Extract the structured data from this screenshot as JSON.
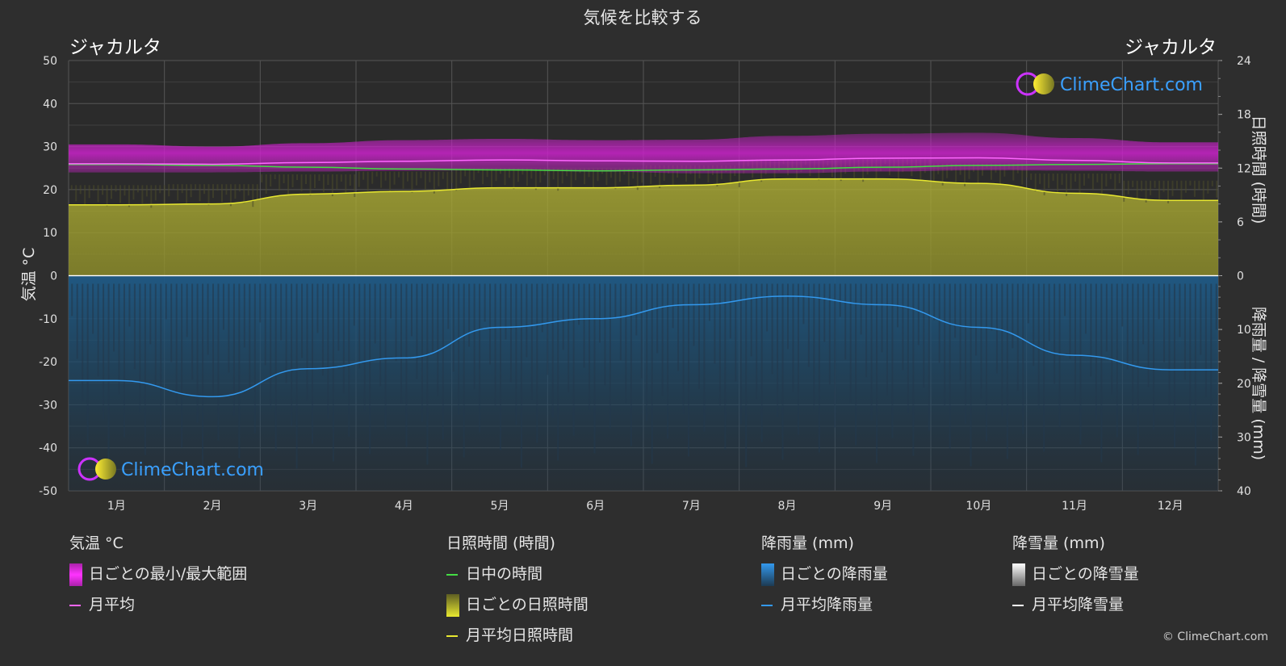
{
  "chart_data": {
    "type": "area",
    "title": "気候を比較する",
    "location_left": "ジャカルタ",
    "location_right": "ジャカルタ",
    "brand": "ClimeChart.com",
    "copyright": "© ClimeChart.com",
    "categories": [
      "1月",
      "2月",
      "3月",
      "4月",
      "5月",
      "6月",
      "7月",
      "8月",
      "9月",
      "10月",
      "11月",
      "12月"
    ],
    "y_left": {
      "label": "気温 °C",
      "ylim": [
        -50,
        50
      ],
      "ticks": [
        50,
        40,
        30,
        20,
        10,
        0,
        -10,
        -20,
        -30,
        -40,
        -50
      ]
    },
    "y_right_top": {
      "label": "日照時間 (時間)",
      "ylim": [
        0,
        24
      ],
      "ticks": [
        24,
        18,
        12,
        6,
        0
      ]
    },
    "y_right_bottom": {
      "label": "降雨量 / 降雪量 (mm)",
      "ylim": [
        0,
        40
      ],
      "ticks": [
        0,
        10,
        20,
        30,
        40
      ]
    },
    "grid": true,
    "series": [
      {
        "name": "月平均",
        "unit": "°C",
        "axis": "temperature",
        "color": "#ff66ff",
        "values": [
          26.0,
          25.9,
          26.3,
          26.6,
          26.9,
          26.7,
          26.6,
          26.9,
          27.3,
          27.4,
          26.8,
          26.2
        ]
      },
      {
        "name": "日ごとの最小/最大範囲",
        "unit": "°C",
        "axis": "temperature",
        "color": "#cc22cc",
        "low": [
          24.0,
          24.0,
          24.2,
          24.4,
          24.5,
          24.2,
          23.8,
          23.8,
          24.2,
          24.5,
          24.4,
          24.2
        ],
        "high": [
          30.5,
          30.0,
          30.8,
          31.5,
          31.8,
          31.5,
          31.6,
          32.5,
          33.0,
          33.2,
          32.0,
          31.0
        ]
      },
      {
        "name": "日中の時間",
        "unit": "時間",
        "axis": "sunshine",
        "color": "#44dd44",
        "values": [
          12.4,
          12.3,
          12.1,
          11.9,
          11.8,
          11.7,
          11.8,
          11.9,
          12.1,
          12.3,
          12.4,
          12.5
        ]
      },
      {
        "name": "月平均日照時間",
        "unit": "時間",
        "axis": "sunshine",
        "color": "#e8e830",
        "values": [
          7.9,
          8.0,
          9.1,
          9.4,
          9.8,
          9.8,
          10.1,
          10.8,
          10.8,
          10.3,
          9.2,
          8.4
        ]
      },
      {
        "name": "月平均降雨量",
        "unit": "mm",
        "axis": "precipitation",
        "color": "#3399ee",
        "values": [
          19.5,
          22.5,
          17.3,
          15.3,
          9.6,
          8.0,
          5.4,
          3.8,
          5.4,
          9.6,
          14.8,
          17.5
        ]
      },
      {
        "name": "月平均降雪量",
        "unit": "mm",
        "axis": "precipitation",
        "color": "#ffffff",
        "values": [
          0,
          0,
          0,
          0,
          0,
          0,
          0,
          0,
          0,
          0,
          0,
          0
        ]
      }
    ],
    "legend": {
      "temperature": {
        "head": "気温 °C",
        "range": "日ごとの最小/最大範囲",
        "avg": "月平均"
      },
      "sunshine": {
        "head": "日照時間 (時間)",
        "daylight": "日中の時間",
        "daily": "日ごとの日照時間",
        "avg": "月平均日照時間"
      },
      "rain": {
        "head": "降雨量 (mm)",
        "daily": "日ごとの降雨量",
        "avg": "月平均降雨量"
      },
      "snow": {
        "head": "降雪量 (mm)",
        "daily": "日ごとの降雪量",
        "avg": "月平均降雪量"
      }
    }
  },
  "colors": {
    "background": "#2e2e2e",
    "temp_range": "#cc22cc",
    "temp_avg": "#ff66ff",
    "daylight": "#44dd44",
    "sunshine_fill": "#a3a32c",
    "sunshine_avg": "#e8e830",
    "rain_fill": "#1f5a86",
    "rain_avg": "#3399ee",
    "snow": "#ffffff",
    "brand_blue": "#3aa0ff"
  }
}
